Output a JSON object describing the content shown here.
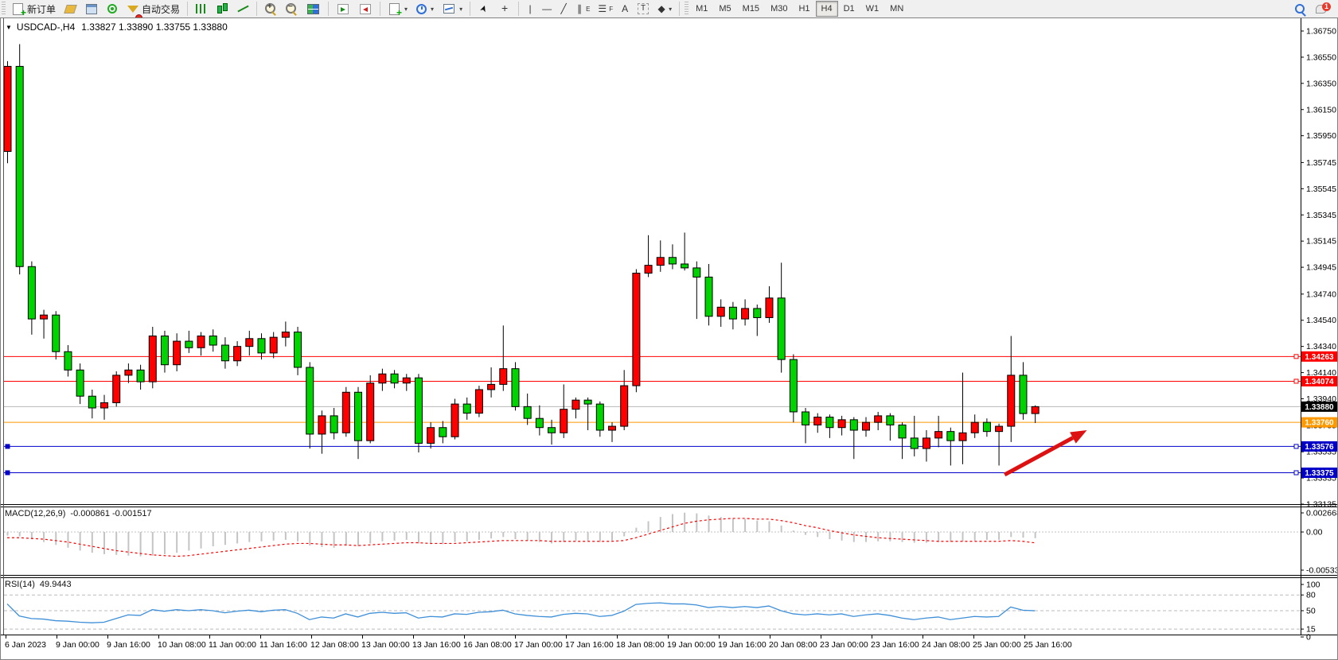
{
  "window": {
    "symbol_title": "USDCAD-,H4",
    "ohlc_display": "1.33827 1.33890 1.33755 1.33880"
  },
  "toolbar": {
    "groups": [
      {
        "items": [
          {
            "name": "new-order-button",
            "icon": "new-order-icon",
            "cls": "i-new-order",
            "label": "新订单"
          },
          {
            "name": "market-watch-button",
            "icon": "market-watch-icon",
            "cls": "i-market-watch"
          },
          {
            "name": "data-window-button",
            "icon": "data-window-icon",
            "cls": "i-data-window"
          },
          {
            "name": "signals-button",
            "icon": "signals-icon",
            "cls": "i-signals"
          },
          {
            "name": "autotrading-button",
            "icon": "autotrading-icon",
            "cls": "i-autotrading",
            "label": "自动交易"
          }
        ]
      },
      {
        "items": [
          {
            "name": "bar-chart-button",
            "icon": "bar-chart-icon",
            "cls": "i-bars"
          },
          {
            "name": "candlestick-chart-button",
            "icon": "candlestick-icon",
            "cls": "i-candles"
          },
          {
            "name": "line-chart-button",
            "icon": "line-chart-icon",
            "cls": "i-linechart"
          }
        ]
      },
      {
        "items": [
          {
            "name": "zoom-in-button",
            "icon": "zoom-in-icon",
            "cls": "i-zoomin"
          },
          {
            "name": "zoom-out-button",
            "icon": "zoom-out-icon",
            "cls": "i-zoomout"
          },
          {
            "name": "tile-windows-button",
            "icon": "tile-windows-icon",
            "cls": "i-tile"
          }
        ]
      },
      {
        "items": [
          {
            "name": "auto-scroll-button",
            "icon": "auto-scroll-icon",
            "cls": "i-autoscroll"
          },
          {
            "name": "chart-shift-button",
            "icon": "chart-shift-icon",
            "cls": "i-shift"
          }
        ]
      },
      {
        "items": [
          {
            "name": "indicators-button",
            "icon": "indicators-icon",
            "cls": "i-indicators",
            "dropdown": true
          },
          {
            "name": "periods-button",
            "icon": "clock-icon",
            "cls": "i-clock",
            "dropdown": true
          },
          {
            "name": "templates-button",
            "icon": "template-icon",
            "cls": "i-template",
            "dropdown": true
          }
        ]
      },
      {
        "items": [
          {
            "name": "cursor-button",
            "icon": "cursor-icon",
            "cls": "i-cursor",
            "glyph": "➤"
          },
          {
            "name": "crosshair-button",
            "icon": "crosshair-icon",
            "cls": "i-crosshair",
            "glyph": "+"
          }
        ]
      },
      {
        "items": [
          {
            "name": "vertical-line-button",
            "icon": "vertical-line-icon",
            "cls": "glyph",
            "glyph": "|"
          },
          {
            "name": "horizontal-line-button",
            "icon": "horizontal-line-icon",
            "cls": "glyph",
            "glyph": "—"
          },
          {
            "name": "trendline-button",
            "icon": "trendline-icon",
            "cls": "glyph",
            "glyph": "╱"
          },
          {
            "name": "equidistant-channel-button",
            "icon": "channel-icon",
            "cls": "glyph",
            "glyph": "∥",
            "sub": "E"
          },
          {
            "name": "fibonacci-button",
            "icon": "fibonacci-icon",
            "cls": "glyph",
            "glyph": "☰",
            "sub": "F"
          },
          {
            "name": "text-button",
            "icon": "text-icon",
            "cls": "glyph",
            "glyph": "A"
          },
          {
            "name": "text-label-button",
            "icon": "text-label-icon",
            "cls": "i-labelT",
            "glyph": "T"
          },
          {
            "name": "arrows-button",
            "icon": "arrows-icon",
            "cls": "glyph",
            "glyph": "◆",
            "dropdown": true
          }
        ]
      }
    ],
    "timeframes": [
      "M1",
      "M5",
      "M15",
      "M30",
      "H1",
      "H4",
      "D1",
      "W1",
      "MN"
    ],
    "active_timeframe": "H4",
    "right_badge": "1"
  },
  "chart_data": {
    "type": "candlestick",
    "symbol": "USDCAD",
    "timeframe": "H4",
    "colors": {
      "bull": "#ff0000",
      "bear": "#00d400",
      "outline": "#000000",
      "hline_red": "#ff0000",
      "hline_orange": "#ff9900",
      "hline_blue": "#0000c8",
      "current_line": "#b8b8b8",
      "current_badge": "#000000",
      "macd_hist": "#c4c4c4",
      "macd_signal": "#ff0000",
      "rsi_line": "#3e8fd8"
    },
    "main": {
      "ylim": [
        1.33135,
        1.3675
      ],
      "price_ticks": [
        1.3675,
        1.3655,
        1.3635,
        1.3615,
        1.3595,
        1.35745,
        1.35545,
        1.35345,
        1.35145,
        1.34945,
        1.3474,
        1.3454,
        1.3434,
        1.3414,
        1.3394,
        1.33735,
        1.33535,
        1.33335,
        1.33135
      ],
      "hlines": [
        {
          "price": 1.34263,
          "color": "#ff0000",
          "handles": "right"
        },
        {
          "price": 1.34074,
          "color": "#ff0000",
          "handles": "right"
        },
        {
          "price": 1.3376,
          "color": "#ff9900",
          "handles": "none"
        },
        {
          "price": 1.33576,
          "color": "#0000c8",
          "handles": "both"
        },
        {
          "price": 1.33375,
          "color": "#0000c8",
          "handles": "both"
        }
      ],
      "current_price": 1.3388,
      "arrow": {
        "from_bar": 82.5,
        "from_price": 1.3336,
        "to_bar": 89.3,
        "to_price": 1.337,
        "color": "#dd1111"
      },
      "candles": [
        [
          1.3583,
          1.3652,
          1.3574,
          1.3648
        ],
        [
          1.3648,
          1.3665,
          1.3489,
          1.3495
        ],
        [
          1.3495,
          1.3499,
          1.3443,
          1.3455
        ],
        [
          1.3455,
          1.3462,
          1.344,
          1.3458
        ],
        [
          1.3458,
          1.3461,
          1.3424,
          1.343
        ],
        [
          1.343,
          1.3435,
          1.3411,
          1.3416
        ],
        [
          1.3416,
          1.3421,
          1.339,
          1.3396
        ],
        [
          1.3396,
          1.3401,
          1.3379,
          1.3387
        ],
        [
          1.3387,
          1.3397,
          1.3378,
          1.3391
        ],
        [
          1.3391,
          1.3415,
          1.3388,
          1.3412
        ],
        [
          1.3412,
          1.3421,
          1.3406,
          1.3416
        ],
        [
          1.3416,
          1.342,
          1.3401,
          1.3407
        ],
        [
          1.3407,
          1.3449,
          1.3402,
          1.3442
        ],
        [
          1.3442,
          1.3446,
          1.3414,
          1.342
        ],
        [
          1.342,
          1.3444,
          1.3415,
          1.3438
        ],
        [
          1.3438,
          1.3446,
          1.3429,
          1.3433
        ],
        [
          1.3433,
          1.3445,
          1.3427,
          1.3442
        ],
        [
          1.3442,
          1.3447,
          1.343,
          1.3435
        ],
        [
          1.3435,
          1.3441,
          1.3417,
          1.3423
        ],
        [
          1.3423,
          1.3438,
          1.3419,
          1.3434
        ],
        [
          1.3434,
          1.3446,
          1.3427,
          1.344
        ],
        [
          1.344,
          1.3444,
          1.3424,
          1.3429
        ],
        [
          1.3429,
          1.3445,
          1.3425,
          1.3441
        ],
        [
          1.3441,
          1.3453,
          1.3434,
          1.3445
        ],
        [
          1.3445,
          1.3449,
          1.3412,
          1.3418
        ],
        [
          1.3418,
          1.3422,
          1.3356,
          1.3367
        ],
        [
          1.3367,
          1.3385,
          1.3352,
          1.3381
        ],
        [
          1.3381,
          1.3387,
          1.3363,
          1.3368
        ],
        [
          1.3368,
          1.3403,
          1.3365,
          1.3399
        ],
        [
          1.3399,
          1.3403,
          1.3348,
          1.3362
        ],
        [
          1.3362,
          1.3412,
          1.336,
          1.3406
        ],
        [
          1.3406,
          1.3417,
          1.34,
          1.3413
        ],
        [
          1.3413,
          1.3416,
          1.3402,
          1.3406
        ],
        [
          1.3406,
          1.3413,
          1.34,
          1.341
        ],
        [
          1.341,
          1.3413,
          1.3353,
          1.336
        ],
        [
          1.336,
          1.3376,
          1.3356,
          1.3372
        ],
        [
          1.3372,
          1.3377,
          1.336,
          1.3365
        ],
        [
          1.3365,
          1.3394,
          1.3363,
          1.339
        ],
        [
          1.339,
          1.3395,
          1.3378,
          1.3383
        ],
        [
          1.3383,
          1.3404,
          1.338,
          1.3401
        ],
        [
          1.3401,
          1.3418,
          1.3395,
          1.3405
        ],
        [
          1.3405,
          1.345,
          1.34,
          1.3417
        ],
        [
          1.3417,
          1.3422,
          1.3385,
          1.3388
        ],
        [
          1.3388,
          1.3398,
          1.3374,
          1.3379
        ],
        [
          1.3379,
          1.3389,
          1.3366,
          1.3372
        ],
        [
          1.3372,
          1.3378,
          1.3359,
          1.3368
        ],
        [
          1.3368,
          1.3405,
          1.3364,
          1.3386
        ],
        [
          1.3386,
          1.3395,
          1.3379,
          1.3393
        ],
        [
          1.3393,
          1.3395,
          1.337,
          1.339
        ],
        [
          1.339,
          1.3392,
          1.3365,
          1.337
        ],
        [
          1.337,
          1.3376,
          1.3361,
          1.3373
        ],
        [
          1.3373,
          1.3416,
          1.337,
          1.3404
        ],
        [
          1.3404,
          1.3493,
          1.3399,
          1.349
        ],
        [
          1.349,
          1.3519,
          1.3487,
          1.3496
        ],
        [
          1.3496,
          1.3515,
          1.3491,
          1.3502
        ],
        [
          1.3502,
          1.3512,
          1.3493,
          1.3497
        ],
        [
          1.3497,
          1.3521,
          1.3492,
          1.3494
        ],
        [
          1.3494,
          1.3499,
          1.3455,
          1.3487
        ],
        [
          1.3487,
          1.3497,
          1.345,
          1.3457
        ],
        [
          1.3457,
          1.347,
          1.3449,
          1.3464
        ],
        [
          1.3464,
          1.3468,
          1.3447,
          1.3455
        ],
        [
          1.3455,
          1.347,
          1.345,
          1.3463
        ],
        [
          1.3463,
          1.3466,
          1.3442,
          1.3456
        ],
        [
          1.3456,
          1.348,
          1.3452,
          1.3471
        ],
        [
          1.3471,
          1.3498,
          1.3414,
          1.3424
        ],
        [
          1.3424,
          1.3428,
          1.3376,
          1.3384
        ],
        [
          1.3384,
          1.3387,
          1.336,
          1.3374
        ],
        [
          1.3374,
          1.3383,
          1.3368,
          1.338
        ],
        [
          1.338,
          1.3382,
          1.3364,
          1.3372
        ],
        [
          1.3372,
          1.3381,
          1.3366,
          1.3378
        ],
        [
          1.3378,
          1.338,
          1.3348,
          1.337
        ],
        [
          1.337,
          1.338,
          1.3365,
          1.3376
        ],
        [
          1.3376,
          1.3384,
          1.337,
          1.3381
        ],
        [
          1.3381,
          1.3383,
          1.3362,
          1.3374
        ],
        [
          1.3374,
          1.3376,
          1.3348,
          1.3364
        ],
        [
          1.3364,
          1.3381,
          1.335,
          1.3356
        ],
        [
          1.3356,
          1.337,
          1.3346,
          1.3364
        ],
        [
          1.3364,
          1.3381,
          1.3357,
          1.3369
        ],
        [
          1.3369,
          1.3372,
          1.3343,
          1.3362
        ],
        [
          1.3362,
          1.3414,
          1.3344,
          1.3368
        ],
        [
          1.3368,
          1.3382,
          1.3364,
          1.3376
        ],
        [
          1.3376,
          1.3379,
          1.3365,
          1.3369
        ],
        [
          1.3369,
          1.3375,
          1.3343,
          1.3373
        ],
        [
          1.3373,
          1.3442,
          1.3361,
          1.3412
        ],
        [
          1.3412,
          1.3422,
          1.3378,
          1.33827
        ],
        [
          1.33827,
          1.3389,
          1.33755,
          1.3388
        ]
      ]
    },
    "macd": {
      "label": "MACD(12,26,9)",
      "values_display": "-0.000861 -0.001517",
      "tick_labels": [
        "0.002668",
        "0.00",
        "-0.00533"
      ],
      "tick_values": [
        0.002668,
        0,
        -0.00533
      ],
      "histogram": [
        -0.0005,
        -0.0006,
        -0.001,
        -0.0014,
        -0.0018,
        -0.0022,
        -0.0026,
        -0.0029,
        -0.0031,
        -0.0032,
        -0.0033,
        -0.0034,
        -0.0033,
        -0.0031,
        -0.0029,
        -0.0026,
        -0.0023,
        -0.002,
        -0.0018,
        -0.0016,
        -0.0014,
        -0.0013,
        -0.0012,
        -0.0011,
        -0.0013,
        -0.0019,
        -0.0021,
        -0.0022,
        -0.0019,
        -0.002,
        -0.0016,
        -0.0013,
        -0.0012,
        -0.0011,
        -0.0016,
        -0.0017,
        -0.0017,
        -0.0014,
        -0.0013,
        -0.0011,
        -0.0009,
        -0.0007,
        -0.001,
        -0.0012,
        -0.0014,
        -0.0016,
        -0.0014,
        -0.0012,
        -0.0012,
        -0.0014,
        -0.0012,
        -0.0006,
        0.0006,
        0.0015,
        0.0021,
        0.0025,
        0.0027,
        0.0026,
        0.0023,
        0.0021,
        0.0019,
        0.0018,
        0.0016,
        0.0015,
        0.0009,
        0.0002,
        -0.0004,
        -0.0007,
        -0.001,
        -0.0012,
        -0.0014,
        -0.0014,
        -0.0013,
        -0.0013,
        -0.0014,
        -0.0015,
        -0.0015,
        -0.0014,
        -0.0014,
        -0.0013,
        -0.0012,
        -0.0011,
        -0.0011,
        -0.0007,
        -0.0008,
        -0.000861
      ],
      "signal": [
        -0.0008,
        -0.0008,
        -0.0009,
        -0.001,
        -0.0012,
        -0.0014,
        -0.0017,
        -0.002,
        -0.0023,
        -0.0026,
        -0.0028,
        -0.003,
        -0.0032,
        -0.0033,
        -0.0034,
        -0.0033,
        -0.0031,
        -0.0029,
        -0.0027,
        -0.0025,
        -0.0023,
        -0.0021,
        -0.0019,
        -0.0017,
        -0.0016,
        -0.0016,
        -0.0017,
        -0.0018,
        -0.0018,
        -0.0019,
        -0.0018,
        -0.0017,
        -0.0016,
        -0.0015,
        -0.0015,
        -0.0016,
        -0.0016,
        -0.0016,
        -0.0015,
        -0.0014,
        -0.0013,
        -0.0012,
        -0.0012,
        -0.0012,
        -0.0012,
        -0.0013,
        -0.0013,
        -0.0013,
        -0.0013,
        -0.0013,
        -0.0013,
        -0.0012,
        -0.0008,
        -0.0003,
        0.0002,
        0.0007,
        0.0012,
        0.0015,
        0.0017,
        0.0018,
        0.0019,
        0.0019,
        0.0018,
        0.0018,
        0.0016,
        0.0013,
        0.0009,
        0.0006,
        0.0002,
        -0.0001,
        -0.0004,
        -0.0006,
        -0.0008,
        -0.0009,
        -0.001,
        -0.0011,
        -0.0012,
        -0.0013,
        -0.0013,
        -0.0013,
        -0.0013,
        -0.0013,
        -0.0013,
        -0.0012,
        -0.0013,
        -0.001517
      ]
    },
    "rsi": {
      "label": "RSI(14)",
      "value_display": "49.9443",
      "scale_labels": [
        100,
        80,
        50,
        15,
        0
      ],
      "level_lines": [
        80,
        50,
        15
      ],
      "values": [
        63,
        40,
        35,
        34,
        31,
        30,
        28,
        27,
        28,
        35,
        42,
        41,
        52,
        49,
        52,
        50,
        52,
        50,
        46,
        49,
        51,
        48,
        51,
        52,
        45,
        33,
        38,
        36,
        44,
        38,
        45,
        47,
        45,
        46,
        36,
        39,
        38,
        44,
        43,
        47,
        48,
        51,
        44,
        41,
        39,
        38,
        43,
        45,
        44,
        39,
        41,
        49,
        62,
        64,
        65,
        63,
        63,
        61,
        56,
        58,
        56,
        58,
        56,
        59,
        50,
        44,
        42,
        44,
        42,
        44,
        39,
        42,
        44,
        41,
        36,
        33,
        36,
        38,
        33,
        36,
        39,
        38,
        39,
        57,
        51,
        49.94
      ]
    },
    "time_axis": {
      "labels": [
        "6 Jan 2023",
        "9 Jan 00:00",
        "9 Jan 16:00",
        "10 Jan 08:00",
        "11 Jan 00:00",
        "11 Jan 16:00",
        "12 Jan 08:00",
        "13 Jan 00:00",
        "13 Jan 16:00",
        "16 Jan 08:00",
        "17 Jan 00:00",
        "17 Jan 16:00",
        "18 Jan 08:00",
        "19 Jan 00:00",
        "19 Jan 16:00",
        "20 Jan 08:00",
        "23 Jan 00:00",
        "23 Jan 16:00",
        "24 Jan 08:00",
        "25 Jan 00:00",
        "25 Jan 16:00"
      ],
      "start_x": 5,
      "spacing": 64
    }
  }
}
